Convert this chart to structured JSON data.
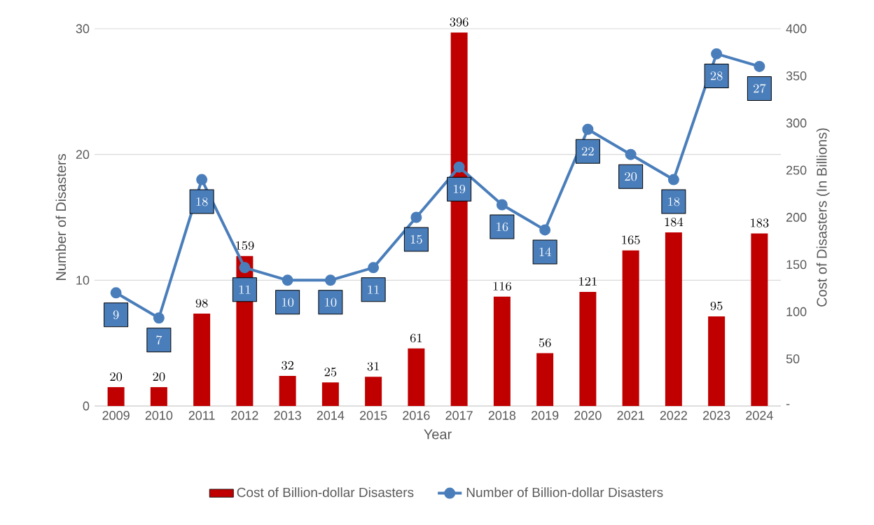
{
  "chart_data": {
    "type": "bar",
    "xlabel": "Year",
    "ylabel": "Number of Disasters",
    "y2label": "Cost of Disasters (In Billions)",
    "categories": [
      "2009",
      "2010",
      "2011",
      "2012",
      "2013",
      "2014",
      "2015",
      "2016",
      "2017",
      "2018",
      "2019",
      "2020",
      "2021",
      "2022",
      "2023",
      "2024"
    ],
    "series": [
      {
        "name": "Cost of Billion-dollar Disasters",
        "color": "#c00000",
        "axis": "y2",
        "values": [
          20,
          20,
          98,
          159,
          32,
          25,
          31,
          61,
          396,
          116,
          56,
          121,
          165,
          184,
          95,
          183
        ]
      },
      {
        "name": "Number of Billion-dollar Disasters",
        "type": "line",
        "color": "#4a7ebb",
        "marker": "circle",
        "values": [
          9,
          7,
          18,
          11,
          10,
          10,
          11,
          15,
          19,
          16,
          14,
          22,
          20,
          18,
          28,
          27
        ]
      }
    ],
    "ylim": [
      0,
      30
    ],
    "yticks": [
      0,
      10,
      20,
      30
    ],
    "y2lim": [
      0,
      400
    ],
    "y2ticks": [
      {
        "value": 0,
        "label": "-"
      },
      50,
      100,
      150,
      200,
      250,
      300,
      350,
      400
    ],
    "grid": "y",
    "legend": "bottom",
    "data_labels": true
  }
}
